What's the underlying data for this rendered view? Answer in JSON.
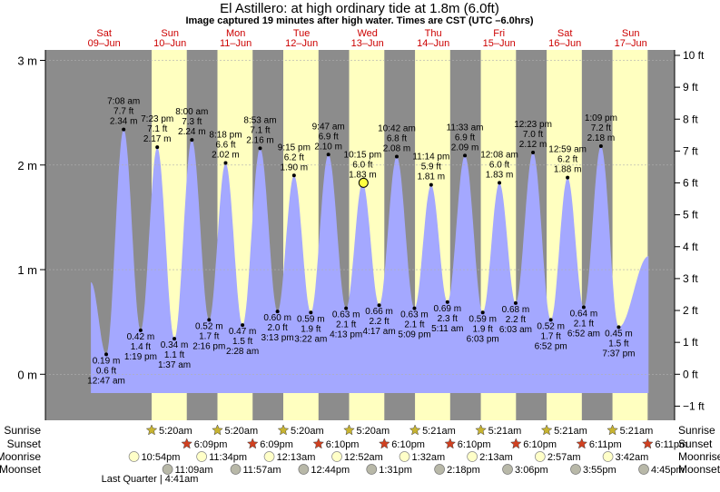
{
  "title": "El Astillero: at high  ordinary tide at 1.8m (6.0ft)",
  "subtitle": "Image captured 19 minutes after high water. Times are CST (UTC –6.0hrs)",
  "days": [
    {
      "dow": "Sat",
      "date": "09–Jun"
    },
    {
      "dow": "Sun",
      "date": "10–Jun"
    },
    {
      "dow": "Mon",
      "date": "11–Jun"
    },
    {
      "dow": "Tue",
      "date": "12–Jun"
    },
    {
      "dow": "Wed",
      "date": "13–Jun"
    },
    {
      "dow": "Thu",
      "date": "14–Jun"
    },
    {
      "dow": "Fri",
      "date": "15–Jun"
    },
    {
      "dow": "Sat",
      "date": "16–Jun"
    },
    {
      "dow": "Sun",
      "date": "17–Jun"
    }
  ],
  "colors": {
    "night": "#8c8c8c",
    "day": "#ffffc0",
    "tide_fill": "#a4a8ff",
    "day_label": "#cc0000",
    "current_marker": "#ffff40"
  },
  "chart_data": {
    "type": "area",
    "title": "El Astillero: at high  ordinary tide at 1.8m (6.0ft)",
    "x_unit": "hours from 09-Jun 00:00 CST",
    "xlim": [
      -9.4,
      220
    ],
    "left_axis": {
      "unit": "m",
      "ylim": [
        -0.44,
        3.1
      ],
      "ticks": [
        0,
        1,
        2,
        3
      ],
      "tick_labels": [
        "0 m",
        "1 m",
        "2 m",
        "3 m"
      ]
    },
    "right_axis": {
      "unit": "ft",
      "ticks": [
        -1,
        0,
        1,
        2,
        3,
        4,
        5,
        6,
        7,
        8,
        9,
        10
      ],
      "tick_labels": [
        "−1 ft",
        "0 ft",
        "1 ft",
        "2 ft",
        "3 ft",
        "4 ft",
        "5 ft",
        "6 ft",
        "7 ft",
        "8 ft",
        "9 ft",
        "10 ft"
      ]
    },
    "series": [
      {
        "name": "tide",
        "points": [
          {
            "t": 12.78,
            "m": 0.19,
            "lines": [
              "0.19 m",
              "0.6 ft",
              "12:47 am"
            ],
            "kind": "low"
          },
          {
            "t": 19.13,
            "m": 2.34,
            "lines": [
              "7:08 am",
              "7.7 ft",
              "2.34 m"
            ],
            "kind": "high"
          },
          {
            "t": 25.32,
            "m": 0.42,
            "lines": [
              "0.42 m",
              "1.4 ft",
              "1:19 pm"
            ],
            "kind": "low"
          },
          {
            "t": 31.38,
            "m": 2.17,
            "lines": [
              "7:23 pm",
              "7.1 ft",
              "2.17 m"
            ],
            "kind": "high"
          },
          {
            "t": 37.62,
            "m": 0.34,
            "lines": [
              "0.34 m",
              "1.1 ft",
              "1:37 am"
            ],
            "kind": "low"
          },
          {
            "t": 44.0,
            "m": 2.24,
            "lines": [
              "8:00 am",
              "7.3 ft",
              "2.24 m"
            ],
            "kind": "high"
          },
          {
            "t": 50.27,
            "m": 0.52,
            "lines": [
              "0.52 m",
              "1.7 ft",
              "2:16 pm"
            ],
            "kind": "low"
          },
          {
            "t": 56.3,
            "m": 2.02,
            "lines": [
              "8:18 pm",
              "6.6 ft",
              "2.02 m"
            ],
            "kind": "high"
          },
          {
            "t": 62.47,
            "m": 0.47,
            "lines": [
              "0.47 m",
              "1.5 ft",
              "2:28 am"
            ],
            "kind": "low"
          },
          {
            "t": 68.88,
            "m": 2.16,
            "lines": [
              "8:53 am",
              "7.1 ft",
              "2.16 m"
            ],
            "kind": "high"
          },
          {
            "t": 75.22,
            "m": 0.6,
            "lines": [
              "0.60 m",
              "2.0 ft",
              "3:13 pm"
            ],
            "kind": "low"
          },
          {
            "t": 81.25,
            "m": 1.9,
            "lines": [
              "9:15 pm",
              "6.2 ft",
              "1.90 m"
            ],
            "kind": "high"
          },
          {
            "t": 87.37,
            "m": 0.59,
            "lines": [
              "0.59 m",
              "1.9 ft",
              "3:22 am"
            ],
            "kind": "low"
          },
          {
            "t": 93.78,
            "m": 2.1,
            "lines": [
              "9:47 am",
              "6.9 ft",
              "2.10 m"
            ],
            "kind": "high"
          },
          {
            "t": 100.22,
            "m": 0.63,
            "lines": [
              "0.63 m",
              "2.1 ft",
              "4:13 pm"
            ],
            "kind": "low"
          },
          {
            "t": 106.25,
            "m": 1.83,
            "lines": [
              "10:15 pm",
              "6.0 ft",
              "1.83 m"
            ],
            "kind": "high"
          },
          {
            "t": 112.28,
            "m": 0.66,
            "lines": [
              "0.66 m",
              "2.2 ft",
              "4:17 am"
            ],
            "kind": "low"
          },
          {
            "t": 118.7,
            "m": 2.08,
            "lines": [
              "10:42 am",
              "6.8 ft",
              "2.08 m"
            ],
            "kind": "high"
          },
          {
            "t": 125.15,
            "m": 0.63,
            "lines": [
              "0.63 m",
              "2.1 ft",
              "5:09 pm"
            ],
            "kind": "low"
          },
          {
            "t": 131.23,
            "m": 1.81,
            "lines": [
              "11:14 pm",
              "5.9 ft",
              "1.81 m"
            ],
            "kind": "high"
          },
          {
            "t": 137.18,
            "m": 0.69,
            "lines": [
              "0.69 m",
              "2.3 ft",
              "5:11 am"
            ],
            "kind": "low"
          },
          {
            "t": 143.55,
            "m": 2.09,
            "lines": [
              "11:33 am",
              "6.9 ft",
              "2.09 m"
            ],
            "kind": "high"
          },
          {
            "t": 150.05,
            "m": 0.59,
            "lines": [
              "0.59 m",
              "1.9 ft",
              "6:03 pm"
            ],
            "kind": "low"
          },
          {
            "t": 156.13,
            "m": 1.83,
            "lines": [
              "12:08 am",
              "6.0 ft",
              "1.83 m"
            ],
            "kind": "high"
          },
          {
            "t": 162.05,
            "m": 0.68,
            "lines": [
              "0.68 m",
              "2.2 ft",
              "6:03 am"
            ],
            "kind": "low"
          },
          {
            "t": 168.38,
            "m": 2.12,
            "lines": [
              "12:23 pm",
              "7.0 ft",
              "2.12 m"
            ],
            "kind": "high"
          },
          {
            "t": 174.87,
            "m": 0.52,
            "lines": [
              "0.52 m",
              "1.7 ft",
              "6:52 pm"
            ],
            "kind": "low"
          },
          {
            "t": 180.98,
            "m": 1.88,
            "lines": [
              "12:59 am",
              "6.2 ft",
              "1.88 m"
            ],
            "kind": "high"
          },
          {
            "t": 186.87,
            "m": 0.64,
            "lines": [
              "0.64 m",
              "2.1 ft",
              "6:52 am"
            ],
            "kind": "low"
          },
          {
            "t": 193.15,
            "m": 2.18,
            "lines": [
              "1:09 pm",
              "7.2 ft",
              "2.18 m"
            ],
            "kind": "high"
          },
          {
            "t": 199.62,
            "m": 0.45,
            "lines": [
              "0.45 m",
              "1.5 ft",
              "7:37 pm"
            ],
            "kind": "low"
          }
        ]
      }
    ],
    "current_marker": {
      "t": 106.57,
      "m": 1.83
    },
    "daylight": [
      {
        "sunrise_h": 29.33,
        "sunset_h": 42.15
      },
      {
        "sunrise_h": 53.33,
        "sunset_h": 66.15
      },
      {
        "sunrise_h": 77.33,
        "sunset_h": 90.17
      },
      {
        "sunrise_h": 101.33,
        "sunset_h": 114.17
      },
      {
        "sunrise_h": 125.35,
        "sunset_h": 138.17
      },
      {
        "sunrise_h": 149.35,
        "sunset_h": 162.17
      },
      {
        "sunrise_h": 173.35,
        "sunset_h": 186.18
      },
      {
        "sunrise_h": 197.35,
        "sunset_h": 210.18
      }
    ]
  },
  "events": {
    "labels": {
      "sunrise": "Sunrise",
      "sunset": "Sunset",
      "moonrise": "Moonrise",
      "moonset": "Moonset"
    },
    "sunrise": [
      {
        "h": 29.33,
        "text": "5:20am"
      },
      {
        "h": 53.33,
        "text": "5:20am"
      },
      {
        "h": 77.33,
        "text": "5:20am"
      },
      {
        "h": 101.33,
        "text": "5:20am"
      },
      {
        "h": 125.35,
        "text": "5:21am"
      },
      {
        "h": 149.35,
        "text": "5:21am"
      },
      {
        "h": 173.35,
        "text": "5:21am"
      },
      {
        "h": 197.35,
        "text": "5:21am"
      }
    ],
    "sunset": [
      {
        "h": 42.15,
        "text": "6:09pm"
      },
      {
        "h": 66.15,
        "text": "6:09pm"
      },
      {
        "h": 90.17,
        "text": "6:10pm"
      },
      {
        "h": 114.17,
        "text": "6:10pm"
      },
      {
        "h": 138.17,
        "text": "6:10pm"
      },
      {
        "h": 162.17,
        "text": "6:10pm"
      },
      {
        "h": 186.18,
        "text": "6:11pm"
      },
      {
        "h": 210.18,
        "text": "6:11pm"
      }
    ],
    "moonrise": [
      {
        "h": 22.9,
        "text": "10:54pm"
      },
      {
        "h": 47.57,
        "text": "11:34pm"
      },
      {
        "h": 72.22,
        "text": "12:13am"
      },
      {
        "h": 96.87,
        "text": "12:52am"
      },
      {
        "h": 121.53,
        "text": "1:32am"
      },
      {
        "h": 146.22,
        "text": "2:13am"
      },
      {
        "h": 170.95,
        "text": "2:57am"
      },
      {
        "h": 195.7,
        "text": "3:42am"
      }
    ],
    "moonset": [
      {
        "h": 35.15,
        "text": "11:09am"
      },
      {
        "h": 59.95,
        "text": "11:57am"
      },
      {
        "h": 84.73,
        "text": "12:44pm"
      },
      {
        "h": 109.52,
        "text": "1:31pm"
      },
      {
        "h": 134.3,
        "text": "2:18pm"
      },
      {
        "h": 159.1,
        "text": "3:06pm"
      },
      {
        "h": 183.92,
        "text": "3:55pm"
      },
      {
        "h": 208.75,
        "text": "4:45pm"
      }
    ],
    "moon_phase": {
      "h": 28.68,
      "text": "Last Quarter | 4:41am"
    }
  }
}
